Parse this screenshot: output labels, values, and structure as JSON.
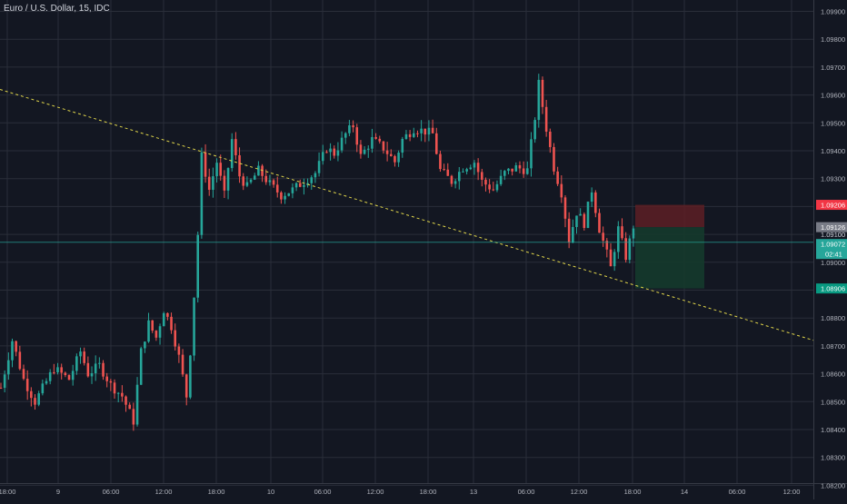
{
  "symbol": {
    "title": "Euro / U.S. Dollar, 15, IDC"
  },
  "colors": {
    "background": "#131722",
    "grid": "#2a2e39",
    "axis_text": "#b2b5be",
    "up": "#26a69a",
    "down": "#ef5350",
    "trendline": "#e0d54a",
    "stop_zone": "#5d1f24",
    "target_zone": "#153a2c",
    "stop_label": "#f23645",
    "target_label": "#089981",
    "current_label": "#26a69a",
    "entry_label": "#787b86"
  },
  "chart_data": {
    "type": "candlestick",
    "ylim": [
      1.082,
      1.0995
    ],
    "y_ticks": [
      "1.08200",
      "1.08300",
      "1.08400",
      "1.08500",
      "1.08600",
      "1.08700",
      "1.08800",
      "1.08900",
      "1.09000",
      "1.09100",
      "1.09200",
      "1.09300",
      "1.09400",
      "1.09500",
      "1.09600",
      "1.09700",
      "1.09800",
      "1.09900"
    ],
    "x_ticks": [
      "18:00",
      "9",
      "06:00",
      "12:00",
      "18:00",
      "10",
      "06:00",
      "12:00",
      "18:00",
      "13",
      "06:00",
      "12:00",
      "18:00",
      "14",
      "06:00",
      "12:00"
    ],
    "price_labels": {
      "stop": "1.09206",
      "entry": "1.09126",
      "line": "1.09100",
      "current": "1.09072",
      "countdown": "02:41",
      "target": "1.08906"
    },
    "trendline": {
      "start_price": 1.0962,
      "end_price": 1.0872,
      "style": "dashed"
    },
    "position": {
      "type": "short",
      "entry": 1.09126,
      "stop": 1.09206,
      "target": 1.08906
    },
    "price_path": [
      [
        0,
        1.0855
      ],
      [
        3,
        1.0872
      ],
      [
        6,
        1.0858
      ],
      [
        9,
        1.085
      ],
      [
        14,
        1.0862
      ],
      [
        18,
        1.0858
      ],
      [
        21,
        1.0868
      ],
      [
        23,
        1.086
      ],
      [
        26,
        1.0863
      ],
      [
        29,
        1.0856
      ],
      [
        32,
        1.0852
      ],
      [
        35,
        1.0843
      ],
      [
        37,
        1.0868
      ],
      [
        39,
        1.0878
      ],
      [
        41,
        1.0873
      ],
      [
        43,
        1.0883
      ],
      [
        45,
        1.0877
      ],
      [
        47,
        1.0866
      ],
      [
        49,
        1.0852
      ],
      [
        50,
        1.0868
      ],
      [
        51,
        1.0888
      ],
      [
        52,
        1.091
      ],
      [
        53,
        1.0938
      ],
      [
        55,
        1.0926
      ],
      [
        57,
        1.0936
      ],
      [
        59,
        1.0924
      ],
      [
        61,
        1.0944
      ],
      [
        63,
        1.0931
      ],
      [
        65,
        1.0927
      ],
      [
        68,
        1.0933
      ],
      [
        71,
        1.0928
      ],
      [
        74,
        1.0924
      ],
      [
        77,
        1.0926
      ],
      [
        80,
        1.0929
      ],
      [
        83,
        1.0932
      ],
      [
        86,
        1.0941
      ],
      [
        88,
        1.0939
      ],
      [
        91,
        1.0946
      ],
      [
        93,
        1.0949
      ],
      [
        95,
        1.0938
      ],
      [
        98,
        1.0944
      ],
      [
        101,
        1.0941
      ],
      [
        104,
        1.0936
      ],
      [
        106,
        1.0944
      ],
      [
        109,
        1.0948
      ],
      [
        112,
        1.0947
      ],
      [
        114,
        1.0946
      ],
      [
        116,
        1.0933
      ],
      [
        119,
        1.0929
      ],
      [
        122,
        1.0934
      ],
      [
        125,
        1.0936
      ],
      [
        127,
        1.0929
      ],
      [
        130,
        1.0926
      ],
      [
        133,
        1.0932
      ],
      [
        136,
        1.0934
      ],
      [
        139,
        1.0933
      ],
      [
        141,
        1.0952
      ],
      [
        142,
        1.0964
      ],
      [
        144,
        1.0948
      ],
      [
        146,
        1.0934
      ],
      [
        148,
        1.0925
      ],
      [
        150,
        1.0908
      ],
      [
        152,
        1.0918
      ],
      [
        154,
        1.0914
      ],
      [
        156,
        1.0926
      ],
      [
        158,
        1.0912
      ],
      [
        160,
        1.0903
      ],
      [
        161,
        1.0898
      ],
      [
        163,
        1.0912
      ],
      [
        165,
        1.0902
      ],
      [
        167,
        1.0913
      ]
    ]
  }
}
